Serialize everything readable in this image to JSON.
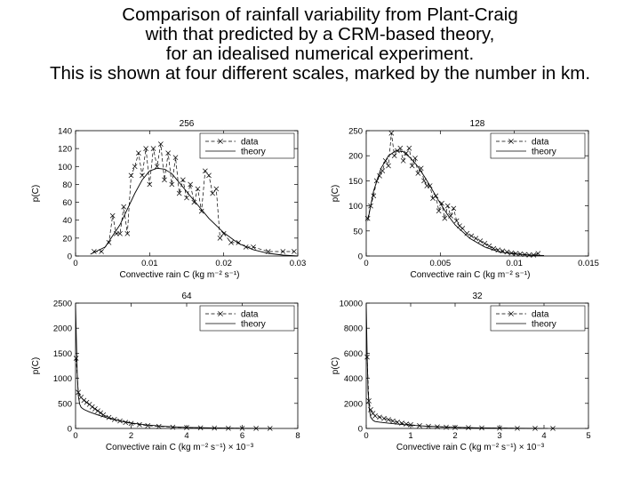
{
  "slide": {
    "title_lines": [
      "Comparison of rainfall variability from Plant-Craig",
      "with that predicted by a CRM-based theory,",
      "for an idealised numerical experiment.",
      "This is shown at four different scales, marked by the number in km."
    ]
  },
  "chart_data": [
    {
      "type": "line",
      "title": "256",
      "xlabel": "Convective rain C (kg m⁻² s⁻¹)",
      "ylabel": "p(C)",
      "xlim": [
        0,
        0.03
      ],
      "ylim": [
        0,
        140
      ],
      "xticks": [
        "0",
        "0.01",
        "0.02",
        "0.03"
      ],
      "yticks": [
        "0",
        "20",
        "40",
        "60",
        "80",
        "100",
        "120",
        "140"
      ],
      "legend": "top-right",
      "series": [
        {
          "name": "data",
          "style": "dashed-x",
          "x": [
            0.0025,
            0.0035,
            0.0045,
            0.005,
            0.0055,
            0.006,
            0.0065,
            0.007,
            0.0075,
            0.008,
            0.0085,
            0.009,
            0.0095,
            0.01,
            0.0105,
            0.011,
            0.0115,
            0.012,
            0.0125,
            0.013,
            0.0135,
            0.014,
            0.0145,
            0.015,
            0.0155,
            0.016,
            0.0165,
            0.017,
            0.0175,
            0.018,
            0.0185,
            0.019,
            0.0195,
            0.02,
            0.021,
            0.022,
            0.023,
            0.024,
            0.026,
            0.028,
            0.0295
          ],
          "y": [
            5,
            5,
            15,
            45,
            25,
            25,
            55,
            25,
            90,
            100,
            115,
            90,
            120,
            80,
            120,
            100,
            125,
            85,
            115,
            80,
            110,
            70,
            85,
            65,
            80,
            60,
            75,
            50,
            95,
            90,
            70,
            75,
            20,
            25,
            15,
            15,
            10,
            10,
            5,
            5,
            5
          ]
        },
        {
          "name": "theory",
          "style": "solid",
          "x": [
            0.002,
            0.004,
            0.006,
            0.008,
            0.009,
            0.01,
            0.011,
            0.012,
            0.013,
            0.014,
            0.016,
            0.018,
            0.02,
            0.022,
            0.024,
            0.026,
            0.028,
            0.03
          ],
          "y": [
            2,
            10,
            35,
            70,
            85,
            95,
            98,
            97,
            92,
            82,
            62,
            42,
            26,
            14,
            7,
            3,
            1,
            0
          ]
        }
      ]
    },
    {
      "type": "line",
      "title": "128",
      "xlabel": "Convective rain C (kg m⁻² s⁻¹)",
      "ylabel": "p(C)",
      "xlim": [
        0,
        0.015
      ],
      "ylim": [
        0,
        250
      ],
      "xticks": [
        "0",
        "0.005",
        "0.01",
        "0.015"
      ],
      "yticks": [
        "0",
        "50",
        "100",
        "150",
        "200",
        "250"
      ],
      "legend": "top-right",
      "series": [
        {
          "name": "data",
          "style": "dashed-x",
          "x": [
            0.0001,
            0.0003,
            0.0005,
            0.0007,
            0.0009,
            0.0011,
            0.0013,
            0.0015,
            0.0017,
            0.0019,
            0.0021,
            0.0023,
            0.0025,
            0.0027,
            0.0029,
            0.0031,
            0.0033,
            0.0035,
            0.0037,
            0.0039,
            0.0041,
            0.0043,
            0.0045,
            0.0047,
            0.0049,
            0.0051,
            0.0053,
            0.0055,
            0.0057,
            0.0059,
            0.0061,
            0.0063,
            0.0065,
            0.0068,
            0.0071,
            0.0074,
            0.0077,
            0.008,
            0.0083,
            0.0086,
            0.0089,
            0.0092,
            0.0095,
            0.0098,
            0.0101,
            0.0104,
            0.0107,
            0.011,
            0.0113,
            0.0116
          ],
          "y": [
            75,
            100,
            120,
            150,
            160,
            170,
            190,
            180,
            245,
            200,
            210,
            215,
            190,
            205,
            215,
            180,
            195,
            165,
            175,
            150,
            140,
            140,
            115,
            120,
            90,
            105,
            75,
            100,
            80,
            95,
            70,
            60,
            55,
            45,
            40,
            35,
            30,
            25,
            20,
            15,
            12,
            10,
            8,
            6,
            5,
            4,
            3,
            2,
            2,
            5
          ]
        },
        {
          "name": "theory",
          "style": "solid",
          "x": [
            0.0001,
            0.0005,
            0.001,
            0.0015,
            0.002,
            0.0025,
            0.003,
            0.0035,
            0.004,
            0.0045,
            0.005,
            0.0055,
            0.006,
            0.007,
            0.008,
            0.009,
            0.01,
            0.011,
            0.012
          ],
          "y": [
            70,
            130,
            175,
            200,
            210,
            208,
            195,
            178,
            155,
            130,
            105,
            82,
            62,
            35,
            18,
            8,
            4,
            2,
            1
          ]
        }
      ]
    },
    {
      "type": "line",
      "title": "64",
      "xlabel": "Convective rain C (kg m⁻² s⁻¹) × 10⁻³",
      "ylabel": "p(C)",
      "xlim": [
        0,
        8
      ],
      "ylim": [
        0,
        2500
      ],
      "xticks": [
        "0",
        "2",
        "4",
        "6",
        "8"
      ],
      "yticks": [
        "0",
        "500",
        "1000",
        "1500",
        "2000",
        "2500"
      ],
      "legend": "top-right",
      "series": [
        {
          "name": "data",
          "style": "dashed-x",
          "x": [
            0.02,
            0.1,
            0.2,
            0.3,
            0.4,
            0.5,
            0.6,
            0.7,
            0.8,
            0.9,
            1.0,
            1.2,
            1.4,
            1.6,
            1.8,
            2.0,
            2.3,
            2.6,
            3.0,
            3.5,
            4.0,
            4.5,
            5.0,
            5.5,
            6.0,
            6.5,
            7.0
          ],
          "y": [
            1400,
            720,
            620,
            560,
            520,
            480,
            430,
            390,
            350,
            310,
            270,
            220,
            180,
            150,
            120,
            100,
            75,
            55,
            40,
            25,
            18,
            12,
            8,
            5,
            3,
            2,
            1
          ]
        },
        {
          "name": "theory",
          "style": "solid",
          "x": [
            0.0,
            0.03,
            0.06,
            0.1,
            0.15,
            0.2,
            0.3,
            0.5,
            0.8,
            1.2,
            1.6,
            2.0,
            2.5,
            3.0,
            3.5,
            4.0,
            5.0,
            6.0,
            7.0
          ],
          "y": [
            2450,
            1800,
            1100,
            650,
            480,
            420,
            380,
            330,
            270,
            200,
            150,
            110,
            75,
            50,
            32,
            22,
            10,
            4,
            2
          ]
        }
      ]
    },
    {
      "type": "line",
      "title": "32",
      "xlabel": "Convective rain C (kg m⁻² s⁻¹) × 10⁻³",
      "ylabel": "p(C)",
      "xlim": [
        0,
        5
      ],
      "ylim": [
        0,
        10000
      ],
      "xticks": [
        "0",
        "1",
        "2",
        "3",
        "4",
        "5"
      ],
      "yticks": [
        "0",
        "2000",
        "4000",
        "6000",
        "8000",
        "10000"
      ],
      "legend": "top-right",
      "series": [
        {
          "name": "data",
          "style": "dashed-x",
          "x": [
            0.02,
            0.06,
            0.1,
            0.15,
            0.2,
            0.3,
            0.4,
            0.5,
            0.6,
            0.7,
            0.8,
            0.9,
            1.0,
            1.2,
            1.4,
            1.6,
            1.8,
            2.0,
            2.3,
            2.6,
            3.0,
            3.4,
            3.8,
            4.2
          ],
          "y": [
            5700,
            2200,
            1500,
            1200,
            1000,
            900,
            800,
            700,
            600,
            500,
            420,
            350,
            300,
            220,
            170,
            130,
            100,
            80,
            60,
            40,
            25,
            15,
            10,
            5
          ]
        },
        {
          "name": "theory",
          "style": "solid",
          "x": [
            0.0,
            0.02,
            0.04,
            0.07,
            0.1,
            0.15,
            0.2,
            0.3,
            0.5,
            0.7,
            1.0,
            1.3,
            1.6,
            2.0,
            2.5,
            3.0,
            3.5,
            4.0
          ],
          "y": [
            9900,
            6000,
            3000,
            1500,
            900,
            650,
            550,
            500,
            420,
            350,
            260,
            190,
            140,
            90,
            50,
            25,
            12,
            5
          ]
        }
      ]
    }
  ]
}
